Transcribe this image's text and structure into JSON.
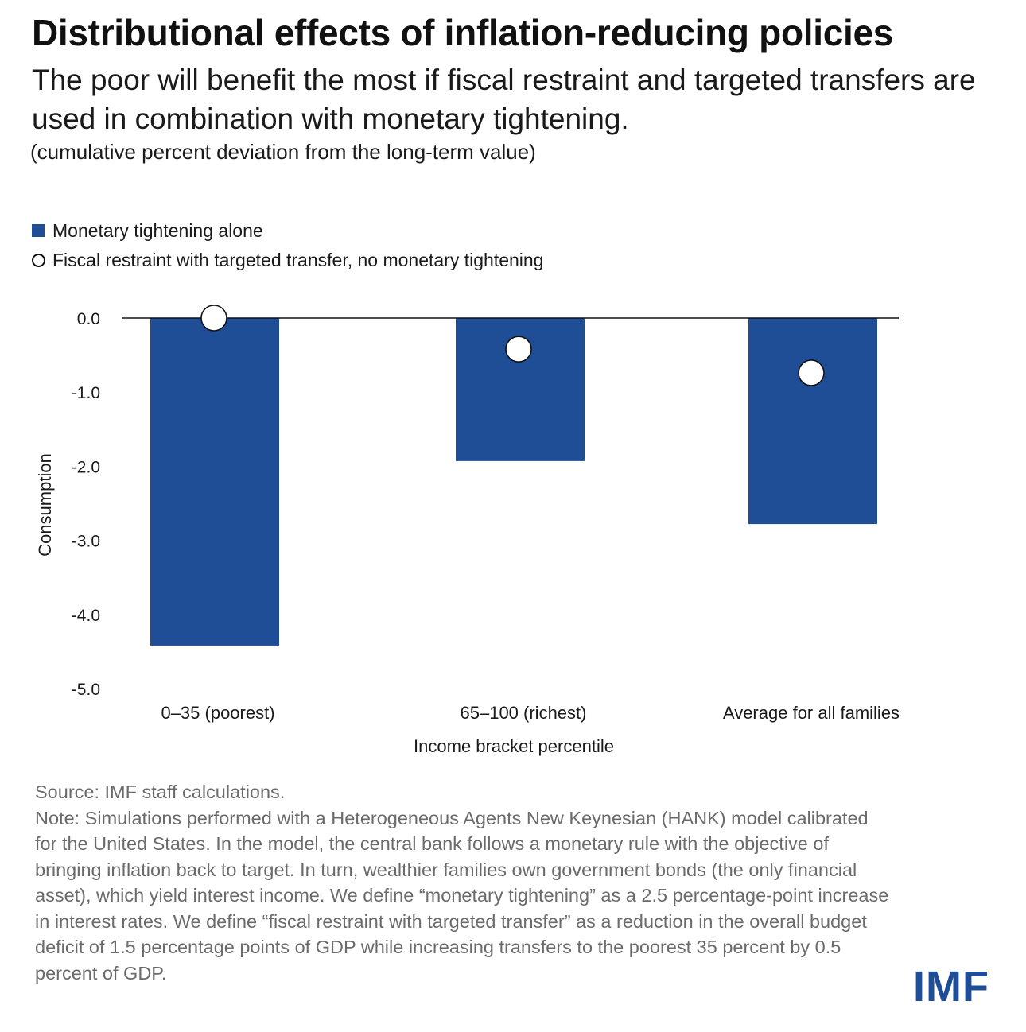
{
  "title": "Distributional effects of inflation-reducing policies",
  "subtitle": "The poor will benefit the most if fiscal restraint and targeted transfers are used in combination with monetary tightening.",
  "units_note": "(cumulative percent deviation from the long-term value)",
  "legend": {
    "bar_label": "Monetary tightening alone",
    "dot_label": "Fiscal restraint with targeted transfer, no monetary tightening"
  },
  "chart_data": {
    "type": "bar",
    "categories": [
      "0–35 (poorest)",
      "65–100 (richest)",
      "Average for all families"
    ],
    "series": [
      {
        "name": "Monetary tightening alone",
        "kind": "bar",
        "color": "#1f4e96",
        "values": [
          -4.42,
          -1.93,
          -2.78
        ]
      },
      {
        "name": "Fiscal restraint with targeted transfer, no monetary tightening",
        "kind": "marker",
        "color": "#ffffff",
        "values": [
          0.0,
          -0.42,
          -0.74
        ]
      }
    ],
    "xlabel": "Income bracket percentile",
    "ylabel": "Consumption",
    "ylim": [
      -5.0,
      0.0
    ],
    "yticks": [
      0.0,
      -1.0,
      -2.0,
      -3.0,
      -4.0,
      -5.0
    ],
    "ytick_labels": [
      "0.0",
      "-1.0",
      "-2.0",
      "-3.0",
      "-4.0",
      "-5.0"
    ],
    "grid": false,
    "legend_position": "top-left"
  },
  "source_text": "Source: IMF staff calculations.",
  "note_text": "Note: Simulations performed with a Heterogeneous Agents New Keynesian (HANK) model calibrated for the United States. In the model, the central bank follows a monetary rule with the objective of bringing inflation back to target. In turn, wealthier families own government bonds (the only financial asset), which yield interest income. We define “monetary tightening” as a 2.5 percentage-point increase in interest rates. We define “fiscal restraint with targeted transfer” as a reduction in the overall budget deficit of 1.5 percentage points of GDP while increasing transfers to the poorest 35 percent by 0.5 percent of GDP.",
  "logo_text": "IMF"
}
